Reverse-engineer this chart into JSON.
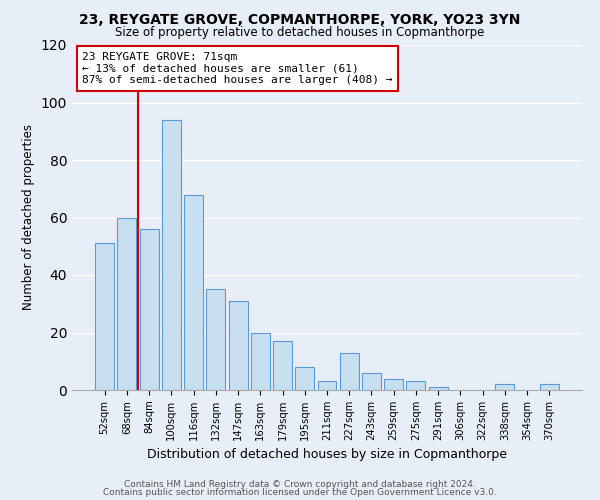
{
  "title1": "23, REYGATE GROVE, COPMANTHORPE, YORK, YO23 3YN",
  "title2": "Size of property relative to detached houses in Copmanthorpe",
  "xlabel": "Distribution of detached houses by size in Copmanthorpe",
  "ylabel": "Number of detached properties",
  "footer1": "Contains HM Land Registry data © Crown copyright and database right 2024.",
  "footer2": "Contains public sector information licensed under the Open Government Licence v3.0.",
  "bar_labels": [
    "52sqm",
    "68sqm",
    "84sqm",
    "100sqm",
    "116sqm",
    "132sqm",
    "147sqm",
    "163sqm",
    "179sqm",
    "195sqm",
    "211sqm",
    "227sqm",
    "243sqm",
    "259sqm",
    "275sqm",
    "291sqm",
    "306sqm",
    "322sqm",
    "338sqm",
    "354sqm",
    "370sqm"
  ],
  "bar_values": [
    51,
    60,
    56,
    94,
    68,
    35,
    31,
    20,
    17,
    8,
    3,
    13,
    6,
    4,
    3,
    1,
    0,
    0,
    2,
    0,
    2
  ],
  "bar_color": "#c8dff0",
  "bar_edge_color": "#5b9bd5",
  "vline_x": 1.5,
  "vline_color": "#cc0000",
  "annotation_title": "23 REYGATE GROVE: 71sqm",
  "annotation_line1": "← 13% of detached houses are smaller (61)",
  "annotation_line2": "87% of semi-detached houses are larger (408) →",
  "annotation_box_color": "white",
  "annotation_box_edge": "#cc0000",
  "ylim": [
    0,
    120
  ],
  "yticks": [
    0,
    20,
    40,
    60,
    80,
    100,
    120
  ],
  "bg_color": "#e8eef8"
}
